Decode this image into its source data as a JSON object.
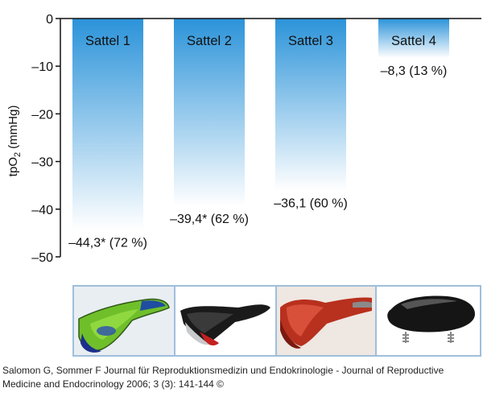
{
  "chart_data": {
    "type": "bar",
    "categories": [
      "Sattel 1",
      "Sattel 2",
      "Sattel 3",
      "Sattel 4"
    ],
    "values": [
      -44.3,
      -39.4,
      -36.1,
      -8.3
    ],
    "value_labels": [
      "–44,3* (72 %)",
      "–39,4* (62 %)",
      "–36,1 (60 %)",
      "–8,3 (13 %)"
    ],
    "ylabel_main": "tpO",
    "ylabel_sub": "2",
    "ylabel_unit": " (mmHg)",
    "ylim": [
      -50,
      0
    ],
    "yticks": [
      0,
      -10,
      -20,
      -30,
      -40,
      -50
    ],
    "ytick_labels": [
      "0",
      "–10",
      "–20",
      "–30",
      "–40",
      "–50"
    ],
    "grid": false,
    "bar_color_top": "#2b93d9",
    "bar_color_bottom": "#ffffff"
  },
  "images": {
    "photos": [
      "saddle-photo-1",
      "saddle-photo-2",
      "saddle-photo-3",
      "saddle-photo-4"
    ]
  },
  "caption": {
    "line1": "Salomon G, Sommer F Journal für Reproduktionsmedizin und Endokrinologie - Journal of Reproductive",
    "line2": "Medicine and Endocrinology 2006; 3 (3): 141-144 ©"
  }
}
